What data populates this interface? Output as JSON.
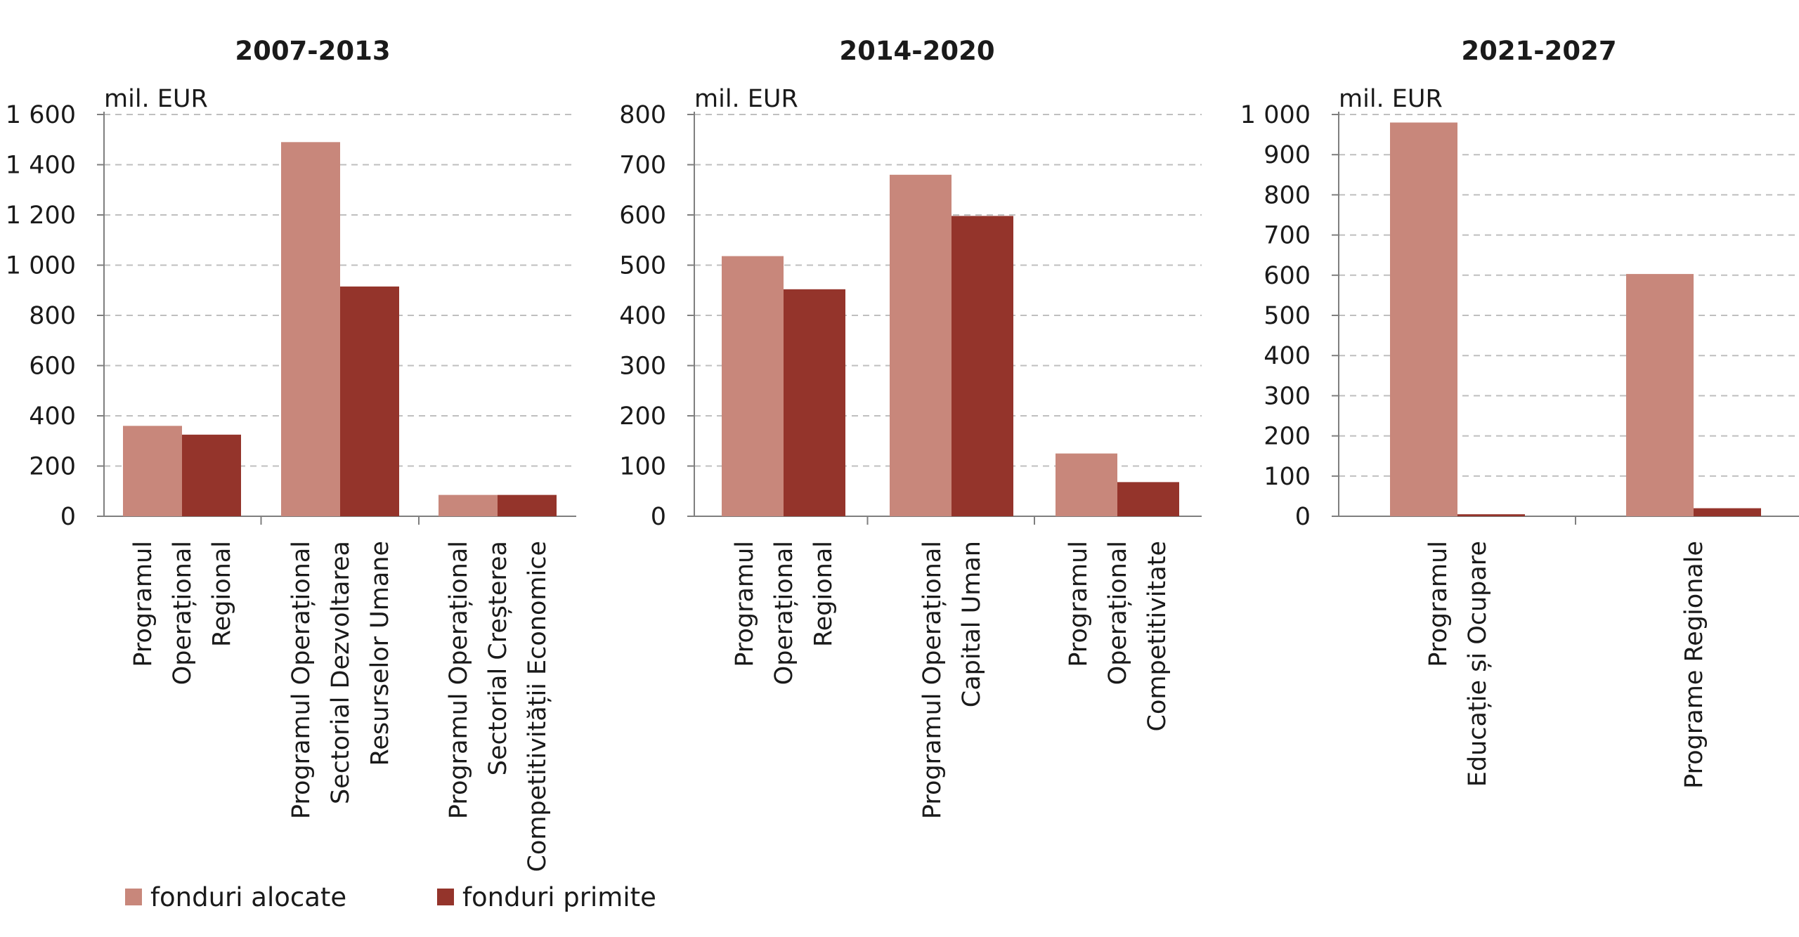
{
  "chart_data": [
    {
      "type": "bar",
      "title": "2007-2013",
      "ylabel": "mil. EUR",
      "ylim": [
        0,
        1600
      ],
      "yticks": [
        0,
        200,
        400,
        600,
        800,
        1000,
        1200,
        1400,
        1600
      ],
      "ytick_labels": [
        "0",
        "200",
        "400",
        "600",
        "800",
        "1 000",
        "1 200",
        "1 400",
        "1 600"
      ],
      "grid": true,
      "categories": [
        [
          "Programul",
          "Operațional",
          "Regional"
        ],
        [
          "Programul Operațional",
          "Sectorial Dezvoltarea",
          "Resurselor Umane"
        ],
        [
          "Programul Operațional",
          "Sectorial Creșterea",
          "Competitivității Economice"
        ]
      ],
      "series": [
        {
          "name": "fonduri alocate",
          "values": [
            360,
            1490,
            85
          ]
        },
        {
          "name": "fonduri primite",
          "values": [
            325,
            915,
            85
          ]
        }
      ]
    },
    {
      "type": "bar",
      "title": "2014-2020",
      "ylabel": "mil. EUR",
      "ylim": [
        0,
        800
      ],
      "yticks": [
        0,
        100,
        200,
        300,
        400,
        500,
        600,
        700,
        800
      ],
      "ytick_labels": [
        "0",
        "100",
        "200",
        "300",
        "400",
        "500",
        "600",
        "700",
        "800"
      ],
      "grid": true,
      "categories": [
        [
          "Programul",
          "Operațional",
          "Regional"
        ],
        [
          "Programul Operațional",
          "Capital Uman"
        ],
        [
          "Programul",
          "Operațional",
          "Competitivitate"
        ]
      ],
      "series": [
        {
          "name": "fonduri alocate",
          "values": [
            518,
            680,
            125
          ]
        },
        {
          "name": "fonduri primite",
          "values": [
            452,
            598,
            68
          ]
        }
      ]
    },
    {
      "type": "bar",
      "title": "2021-2027",
      "ylabel": "mil. EUR",
      "ylim": [
        0,
        1000
      ],
      "yticks": [
        0,
        100,
        200,
        300,
        400,
        500,
        600,
        700,
        800,
        900,
        1000
      ],
      "ytick_labels": [
        "0",
        "100",
        "200",
        "300",
        "400",
        "500",
        "600",
        "700",
        "800",
        "900",
        "1 000"
      ],
      "grid": true,
      "categories": [
        [
          "Programul",
          "Educație și Ocupare"
        ],
        [
          "Programe Regionale"
        ]
      ],
      "series": [
        {
          "name": "fonduri alocate",
          "values": [
            980,
            603
          ]
        },
        {
          "name": "fonduri primite",
          "values": [
            5,
            20
          ]
        }
      ]
    }
  ],
  "legend": {
    "placement": "bottom-left",
    "items": [
      {
        "label": "fonduri alocate",
        "color": "#c8877b"
      },
      {
        "label": "fonduri primite",
        "color": "#94342b"
      }
    ]
  },
  "colors": {
    "alocate": "#c8877b",
    "primite": "#94342b",
    "grid": "#bfbfbf",
    "axis": "#7f7f7f",
    "text": "#1a1a1a"
  }
}
